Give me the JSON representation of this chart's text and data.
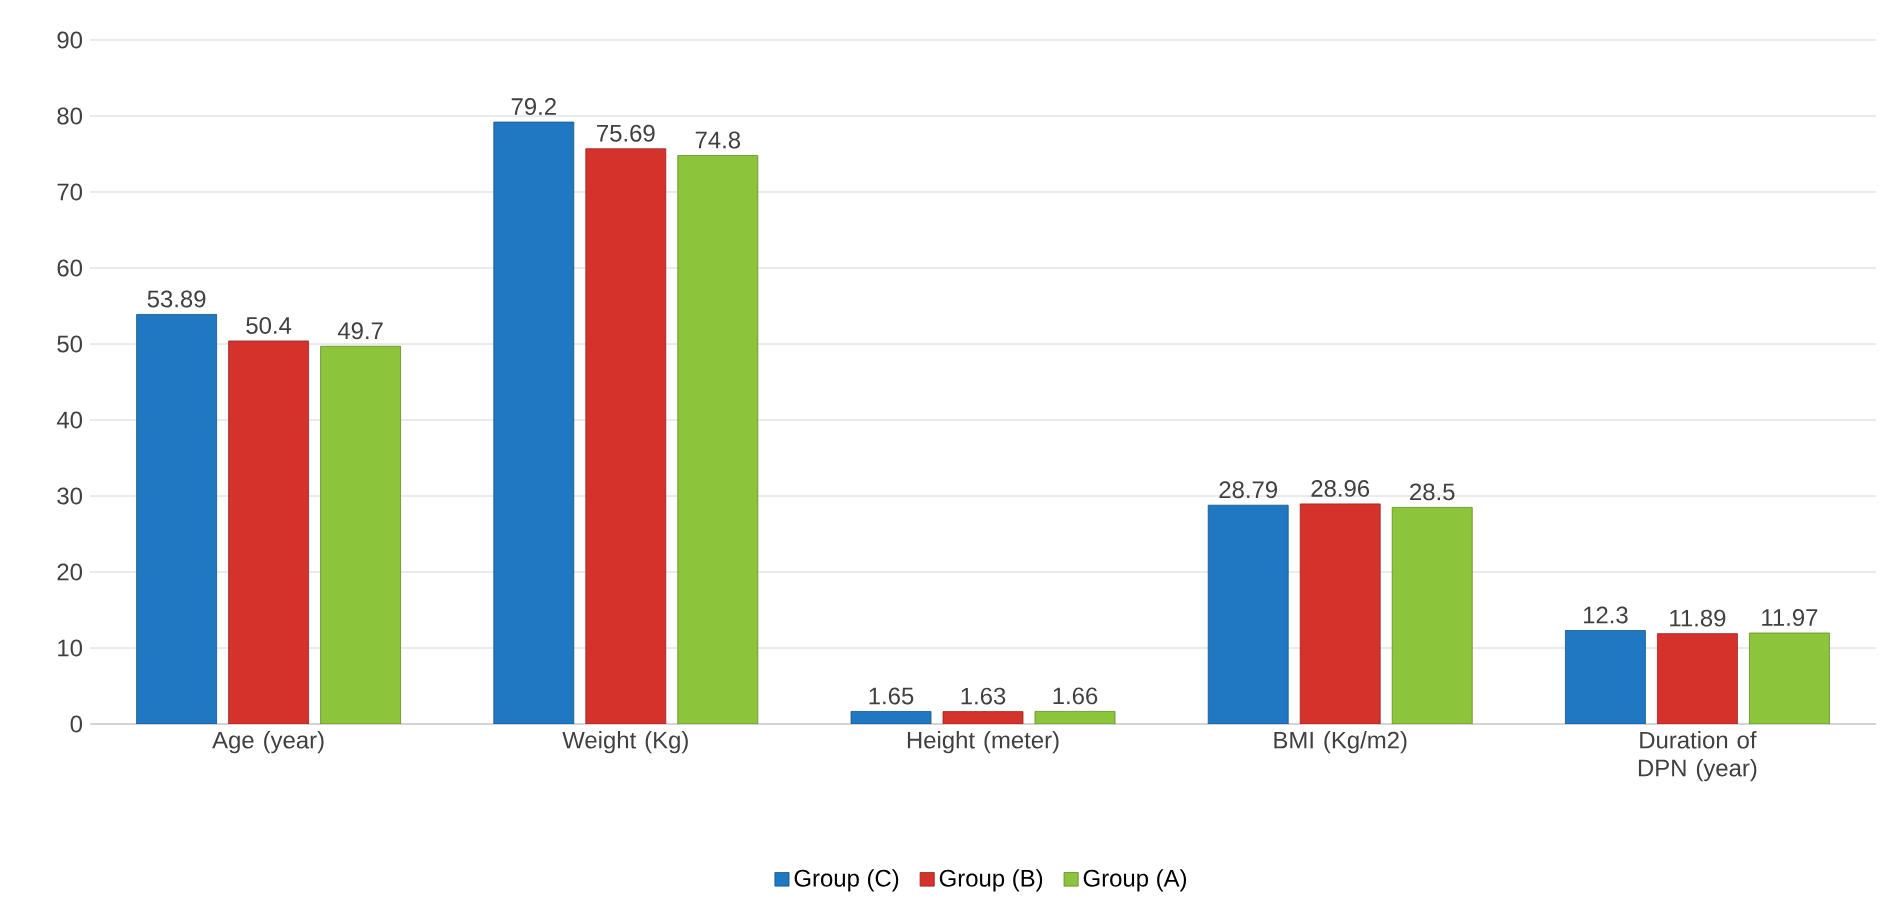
{
  "chart_data": {
    "type": "bar",
    "categories": [
      "Age (year)",
      "Weight (Kg)",
      "Height (meter)",
      "BMI (Kg/m2)",
      "Duration of DPN (year)"
    ],
    "series": [
      {
        "name": "Group (C)",
        "color": "#1f78c1",
        "values": [
          53.89,
          79.2,
          1.65,
          28.79,
          12.3
        ]
      },
      {
        "name": "Group (B)",
        "color": "#d6322c",
        "values": [
          50.4,
          75.69,
          1.63,
          28.96,
          11.89
        ]
      },
      {
        "name": "Group (A)",
        "color": "#8cc43c",
        "values": [
          49.7,
          74.8,
          1.66,
          28.5,
          11.97
        ]
      }
    ],
    "ylim": [
      0,
      90
    ],
    "yticks": [
      0,
      10,
      20,
      30,
      40,
      50,
      60,
      70,
      80,
      90
    ],
    "grid": "y",
    "legend": "bottom",
    "data_labels": true
  }
}
